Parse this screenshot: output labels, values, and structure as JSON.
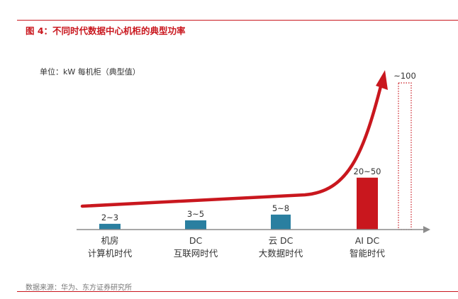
{
  "header": {
    "figure_title": "图 4：不同时代数据中心机柜的典型功率"
  },
  "footer": {
    "source": "数据来源：华为、东方证券研究所"
  },
  "colors": {
    "accent_red": "#c9171e",
    "bar_teal": "#2a7fa0",
    "axis_gray": "#8c8c8c",
    "text_dark": "#333333"
  },
  "chart_data": {
    "type": "bar",
    "title": "图 4：不同时代数据中心机柜的典型功率",
    "ylabel": "单位：kW 每机柜（典型值）",
    "xlabel": "",
    "categories": [
      {
        "line1": "机房",
        "line2": "计算机时代"
      },
      {
        "line1": "DC",
        "line2": "互联网时代"
      },
      {
        "line1": "云 DC",
        "line2": "大数据时代"
      },
      {
        "line1": "AI DC",
        "line2": "智能时代"
      }
    ],
    "series": [
      {
        "name": "典型功率",
        "values": [
          2.5,
          4,
          6.5,
          35
        ],
        "labels": [
          "2~3",
          "3~5",
          "5~8",
          "20~50"
        ],
        "styles": [
          "teal",
          "teal",
          "teal",
          "red"
        ]
      }
    ],
    "projection": {
      "value": 100,
      "label": "~100",
      "style": "dotted-red-outline"
    },
    "trend_arrow": "upward exponential trend line",
    "ylim": [
      0,
      100
    ],
    "grid": false
  }
}
